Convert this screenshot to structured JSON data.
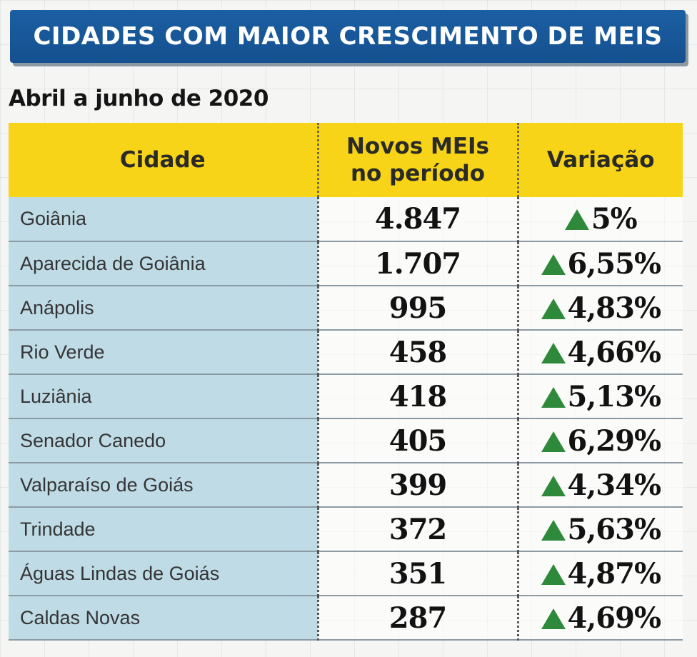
{
  "banner": {
    "title": "CIDADES COM MAIOR CRESCIMENTO DE MEIS"
  },
  "subtitle": "Abril a junho de 2020",
  "table": {
    "header_color": "#f7d417",
    "city_cell_color": "#bfdbe6",
    "arrow_color": "#2e8a3a",
    "columns": [
      "Cidade",
      "Novos MEIs\nno período",
      "Variação"
    ],
    "rows": [
      {
        "cidade": "Goiânia",
        "novos": "4.847",
        "variacao": "5%",
        "trend": "up-triangle-icon"
      },
      {
        "cidade": "Aparecida de Goiânia",
        "novos": "1.707",
        "variacao": "6,55%",
        "trend": "up-triangle-icon"
      },
      {
        "cidade": "Anápolis",
        "novos": "995",
        "variacao": "4,83%",
        "trend": "up-triangle-icon"
      },
      {
        "cidade": "Rio Verde",
        "novos": "458",
        "variacao": "4,66%",
        "trend": "up-triangle-icon"
      },
      {
        "cidade": "Luziânia",
        "novos": "418",
        "variacao": "5,13%",
        "trend": "up-triangle-icon"
      },
      {
        "cidade": "Senador Canedo",
        "novos": "405",
        "variacao": "6,29%",
        "trend": "up-triangle-icon"
      },
      {
        "cidade": "Valparaíso de Goiás",
        "novos": "399",
        "variacao": "4,34%",
        "trend": "up-triangle-icon"
      },
      {
        "cidade": "Trindade",
        "novos": "372",
        "variacao": "5,63%",
        "trend": "up-triangle-icon"
      },
      {
        "cidade": "Águas Lindas de Goiás",
        "novos": "351",
        "variacao": "4,87%",
        "trend": "up-triangle-icon"
      },
      {
        "cidade": "Caldas Novas",
        "novos": "287",
        "variacao": "4,69%",
        "trend": "up-triangle-icon"
      }
    ]
  }
}
